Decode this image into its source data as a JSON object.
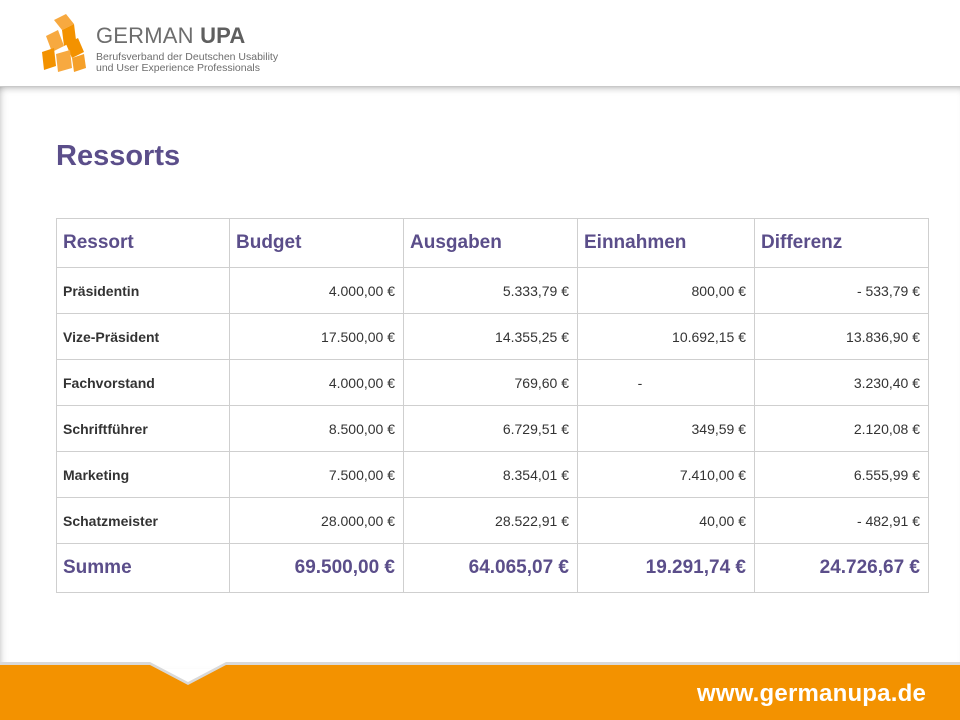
{
  "header": {
    "logo_name_light": "GERMAN ",
    "logo_name_bold": "UPA",
    "logo_subtitle_line1": "Berufsverband der Deutschen Usability",
    "logo_subtitle_line2": "und User Experience Professionals"
  },
  "title": "Ressorts",
  "table": {
    "headers": [
      "Ressort",
      "Budget",
      "Ausgaben",
      "Einnahmen",
      "Differenz"
    ],
    "rows": [
      [
        "Präsidentin",
        "4.000,00 €",
        "5.333,79 €",
        "800,00 €",
        "- 533,79 €"
      ],
      [
        "Vize-Präsident",
        "17.500,00 €",
        "14.355,25 €",
        "10.692,15 €",
        "13.836,90 €"
      ],
      [
        "Fachvorstand",
        "4.000,00 €",
        "769,60 €",
        "-",
        "3.230,40 €"
      ],
      [
        "Schriftführer",
        "8.500,00 €",
        "6.729,51 €",
        "349,59 €",
        "2.120,08 €"
      ],
      [
        "Marketing",
        "7.500,00 €",
        "8.354,01 €",
        "7.410,00 €",
        "6.555,99 €"
      ],
      [
        "Schatzmeister",
        "28.000,00 €",
        "28.522,91 €",
        "40,00 €",
        "- 482,91 €"
      ]
    ],
    "sum": [
      "Summe",
      "69.500,00 €",
      "64.065,07 €",
      "19.291,74 €",
      "24.726,67 €"
    ]
  },
  "footer": {
    "url": "www.germanupa.de"
  },
  "colors": {
    "accent_purple": "#5b4e8a",
    "brand_orange": "#f39200",
    "text_dark": "#333333",
    "border": "#cfcfcf"
  }
}
